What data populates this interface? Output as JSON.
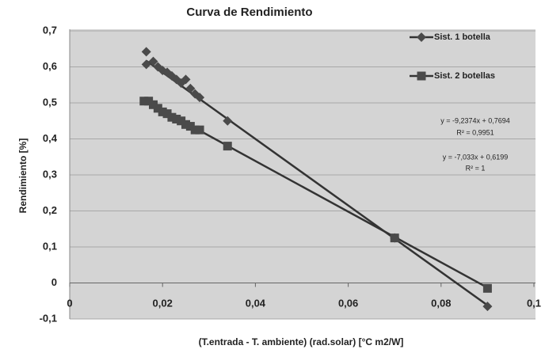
{
  "chart_data": {
    "type": "scatter",
    "title": "Curva de Rendimiento",
    "x_label": "(T.entrada - T. ambiente) (rad.solar) [°C m2/W]",
    "y_label": "Rendimiento [%]",
    "xlim": [
      0,
      0.1
    ],
    "ylim": [
      -0.1,
      0.7
    ],
    "xticks": [
      0,
      {
        "value": 0.02,
        "label": "0,02"
      },
      {
        "value": 0.04,
        "label": "0,04"
      },
      {
        "value": 0.06,
        "label": "0,06"
      },
      {
        "value": 0.08,
        "label": "0,08"
      },
      {
        "value": 0.1,
        "label": "0,1"
      }
    ],
    "yticks": [
      {
        "value": -0.1,
        "label": "-0,1"
      },
      0,
      {
        "value": 0.1,
        "label": "0,1"
      },
      {
        "value": 0.2,
        "label": "0,2"
      },
      {
        "value": 0.3,
        "label": "0,3"
      },
      {
        "value": 0.4,
        "label": "0,4"
      },
      {
        "value": 0.5,
        "label": "0,5"
      },
      {
        "value": 0.6,
        "label": "0,6"
      },
      {
        "value": 0.7,
        "label": "0,7"
      }
    ],
    "grid": true,
    "legend": "top-right",
    "series": [
      {
        "name": "Sist. 1 botella",
        "color": "#4a4a4a",
        "marker": "diamond",
        "x": [
          0.0165,
          0.0165,
          0.018,
          0.019,
          0.02,
          0.021,
          0.022,
          0.023,
          0.024,
          0.025,
          0.026,
          0.027,
          0.028,
          0.034,
          0.07,
          0.09
        ],
        "values": [
          0.642,
          0.607,
          0.615,
          0.6,
          0.59,
          0.585,
          0.575,
          0.565,
          0.555,
          0.565,
          0.54,
          0.525,
          0.515,
          0.45,
          0.125,
          -0.065
        ],
        "trendline": {
          "slope": -9.2374,
          "intercept": 0.7694,
          "equation": "y = -9,2374x + 0,7694",
          "r2": "R² = 0,9951"
        }
      },
      {
        "name": "Sist. 2 botellas",
        "color": "#4a4a4a",
        "marker": "square",
        "x": [
          0.016,
          0.017,
          0.018,
          0.019,
          0.02,
          0.021,
          0.022,
          0.023,
          0.024,
          0.025,
          0.026,
          0.027,
          0.028,
          0.034,
          0.07,
          0.09
        ],
        "values": [
          0.505,
          0.505,
          0.495,
          0.485,
          0.475,
          0.47,
          0.46,
          0.455,
          0.45,
          0.44,
          0.435,
          0.425,
          0.425,
          0.38,
          0.125,
          -0.015
        ],
        "trendline": {
          "slope": -7.033,
          "intercept": 0.6199,
          "equation": "y = -7,033x + 0,6199",
          "r2": "R² = 1"
        }
      }
    ]
  }
}
